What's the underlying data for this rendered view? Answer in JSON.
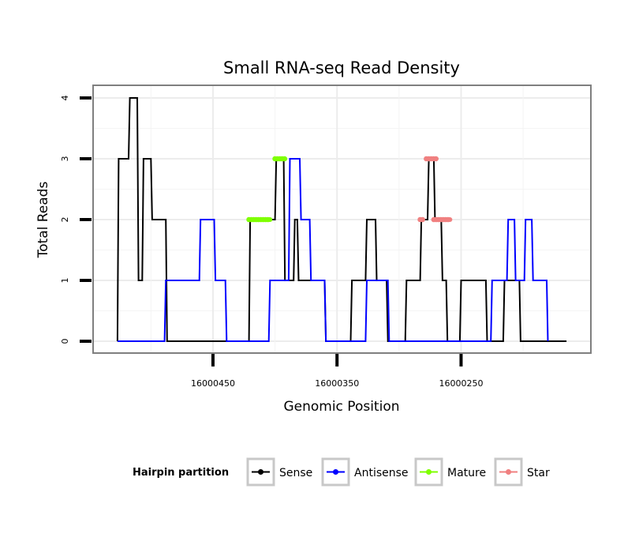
{
  "chart_data": {
    "type": "line",
    "title": "Small RNA-seq Read Density",
    "xlabel": "Genomic Position",
    "ylabel": "Total Reads",
    "x_reversed": true,
    "xlim": [
      16000146,
      16000546
    ],
    "ylim": [
      0,
      4.2
    ],
    "x_ticks": [
      16000450,
      16000350,
      16000250
    ],
    "x_tick_labels": [
      "16000450",
      "16000350",
      "16000250"
    ],
    "y_ticks": [
      0,
      1,
      2,
      3,
      4
    ],
    "y_tick_labels": [
      "0",
      "1",
      "2",
      "3",
      "4"
    ],
    "grid": true,
    "legend": {
      "title": "Hairpin partition",
      "position": "bottom",
      "entries": [
        "Sense",
        "Antisense",
        "Mature",
        "Star"
      ]
    },
    "series": [
      {
        "name": "Sense",
        "color": "#000000",
        "x": [
          16000527,
          16000526,
          16000518,
          16000517,
          16000511,
          16000510,
          16000507,
          16000506,
          16000500,
          16000499,
          16000488,
          16000487,
          16000484,
          16000483,
          16000482,
          16000481,
          16000421,
          16000420,
          16000400,
          16000399,
          16000393,
          16000392,
          16000385,
          16000384,
          16000382,
          16000381,
          16000379,
          16000378,
          16000376,
          16000375,
          16000360,
          16000359,
          16000339,
          16000338,
          16000327,
          16000326,
          16000319,
          16000318,
          16000310,
          16000309,
          16000295,
          16000294,
          16000283,
          16000282,
          16000277,
          16000276,
          16000272,
          16000271,
          16000266,
          16000265,
          16000262,
          16000261,
          16000251,
          16000250,
          16000230,
          16000229,
          16000216,
          16000215,
          16000203,
          16000202,
          16000182,
          16000181,
          16000165
        ],
        "y": [
          0,
          3,
          3,
          4,
          4,
          1,
          1,
          3,
          3,
          2,
          2,
          0,
          0,
          0,
          0,
          0,
          0,
          2,
          2,
          3,
          3,
          1,
          1,
          2,
          2,
          1,
          1,
          1,
          1,
          1,
          1,
          0,
          0,
          1,
          1,
          2,
          2,
          1,
          1,
          0,
          0,
          1,
          1,
          2,
          2,
          3,
          3,
          2,
          2,
          1,
          1,
          0,
          0,
          1,
          1,
          0,
          0,
          1,
          1,
          0,
          0,
          0,
          0
        ]
      },
      {
        "name": "Antisense",
        "color": "#0000ff",
        "x": [
          16000527,
          16000489,
          16000488,
          16000461,
          16000460,
          16000449,
          16000448,
          16000440,
          16000439,
          16000405,
          16000404,
          16000397,
          16000396,
          16000389,
          16000388,
          16000380,
          16000379,
          16000372,
          16000371,
          16000360,
          16000359,
          16000327,
          16000326,
          16000309,
          16000308,
          16000226,
          16000225,
          16000213,
          16000212,
          16000207,
          16000206,
          16000199,
          16000198,
          16000193,
          16000192,
          16000181,
          16000180
        ],
        "y": [
          0,
          0,
          1,
          1,
          2,
          2,
          1,
          1,
          0,
          0,
          1,
          1,
          1,
          1,
          3,
          3,
          2,
          2,
          1,
          1,
          0,
          0,
          1,
          1,
          0,
          0,
          1,
          1,
          2,
          2,
          1,
          1,
          2,
          2,
          1,
          1,
          0
        ]
      },
      {
        "name": "Mature",
        "color": "#7fff00",
        "segments": [
          {
            "x": [
              16000421,
              16000404
            ],
            "y": [
              2,
              2
            ]
          },
          {
            "x": [
              16000400,
              16000392
            ],
            "y": [
              3,
              3
            ]
          }
        ]
      },
      {
        "name": "Star",
        "color": "#f08080",
        "segments": [
          {
            "x": [
              16000283,
              16000281
            ],
            "y": [
              2,
              2
            ]
          },
          {
            "x": [
              16000278,
              16000270
            ],
            "y": [
              3,
              3
            ]
          },
          {
            "x": [
              16000272,
              16000259
            ],
            "y": [
              2,
              2
            ]
          }
        ]
      }
    ]
  }
}
